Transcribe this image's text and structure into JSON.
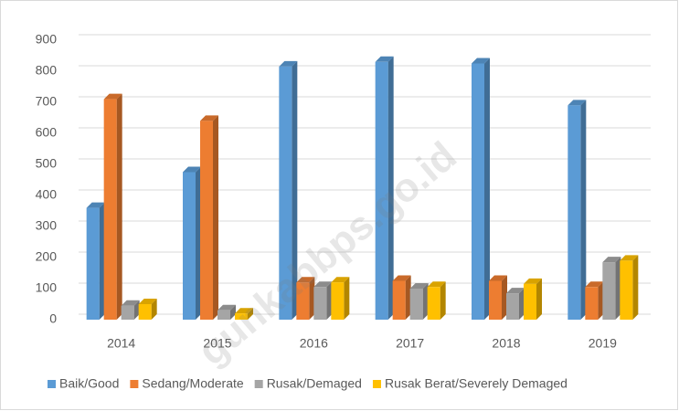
{
  "chart_data": {
    "type": "bar3d",
    "categories": [
      "2014",
      "2015",
      "2016",
      "2017",
      "2018",
      "2019"
    ],
    "series": [
      {
        "name": "Baik/Good",
        "color": "#5b9bd5",
        "values": [
          360,
          475,
          815,
          830,
          825,
          690
        ]
      },
      {
        "name": "Sedang/Moderate",
        "color": "#ed7d31",
        "values": [
          710,
          640,
          120,
          125,
          125,
          105
        ]
      },
      {
        "name": "Rusak/Demaged",
        "color": "#a5a5a5",
        "values": [
          45,
          30,
          105,
          100,
          85,
          185
        ]
      },
      {
        "name": "Rusak Berat/Severely Demaged",
        "color": "#ffc000",
        "values": [
          50,
          20,
          120,
          105,
          115,
          190
        ]
      }
    ],
    "ylim": [
      0,
      900
    ],
    "yticks": [
      0,
      100,
      200,
      300,
      400,
      500,
      600,
      700,
      800,
      900
    ],
    "grid": true,
    "legend": "bottom",
    "watermark": "gunkabbps.go.id"
  }
}
